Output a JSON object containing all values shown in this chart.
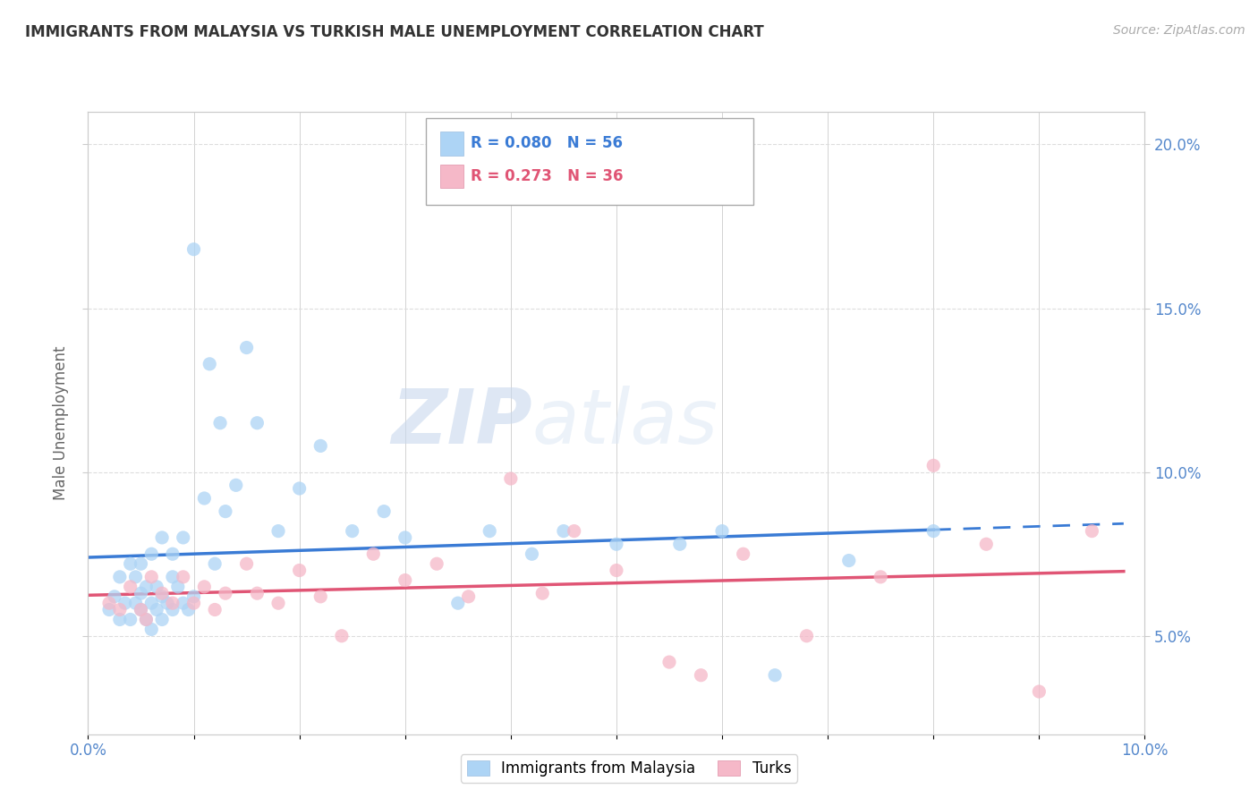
{
  "title": "IMMIGRANTS FROM MALAYSIA VS TURKISH MALE UNEMPLOYMENT CORRELATION CHART",
  "source": "Source: ZipAtlas.com",
  "ylabel": "Male Unemployment",
  "legend_labels": [
    "Immigrants from Malaysia",
    "Turks"
  ],
  "blue_R": "R = 0.080",
  "blue_N": "N = 56",
  "pink_R": "R = 0.273",
  "pink_N": "N = 36",
  "xlim": [
    0.0,
    0.1
  ],
  "ylim": [
    0.02,
    0.21
  ],
  "yticks": [
    0.05,
    0.1,
    0.15,
    0.2
  ],
  "blue_color": "#add4f5",
  "pink_color": "#f5b8c8",
  "blue_line_color": "#3a7bd5",
  "pink_line_color": "#e05575",
  "watermark_zip": "ZIP",
  "watermark_atlas": "atlas",
  "blue_x": [
    0.002,
    0.0025,
    0.003,
    0.003,
    0.0035,
    0.004,
    0.004,
    0.0045,
    0.0045,
    0.005,
    0.005,
    0.005,
    0.0055,
    0.0055,
    0.006,
    0.006,
    0.006,
    0.0065,
    0.0065,
    0.007,
    0.007,
    0.007,
    0.0075,
    0.008,
    0.008,
    0.008,
    0.0085,
    0.009,
    0.009,
    0.0095,
    0.01,
    0.01,
    0.011,
    0.0115,
    0.012,
    0.0125,
    0.013,
    0.014,
    0.015,
    0.016,
    0.018,
    0.02,
    0.022,
    0.025,
    0.028,
    0.03,
    0.035,
    0.038,
    0.042,
    0.045,
    0.05,
    0.056,
    0.06,
    0.065,
    0.072,
    0.08
  ],
  "blue_y": [
    0.058,
    0.062,
    0.055,
    0.068,
    0.06,
    0.055,
    0.072,
    0.06,
    0.068,
    0.058,
    0.063,
    0.072,
    0.055,
    0.065,
    0.052,
    0.06,
    0.075,
    0.058,
    0.065,
    0.055,
    0.062,
    0.08,
    0.06,
    0.058,
    0.068,
    0.075,
    0.065,
    0.06,
    0.08,
    0.058,
    0.062,
    0.168,
    0.092,
    0.133,
    0.072,
    0.115,
    0.088,
    0.096,
    0.138,
    0.115,
    0.082,
    0.095,
    0.108,
    0.082,
    0.088,
    0.08,
    0.06,
    0.082,
    0.075,
    0.082,
    0.078,
    0.078,
    0.082,
    0.038,
    0.073,
    0.082
  ],
  "pink_x": [
    0.002,
    0.003,
    0.004,
    0.005,
    0.0055,
    0.006,
    0.007,
    0.008,
    0.009,
    0.01,
    0.011,
    0.012,
    0.013,
    0.015,
    0.016,
    0.018,
    0.02,
    0.022,
    0.024,
    0.027,
    0.03,
    0.033,
    0.036,
    0.04,
    0.043,
    0.046,
    0.05,
    0.055,
    0.058,
    0.062,
    0.068,
    0.075,
    0.08,
    0.085,
    0.09,
    0.095
  ],
  "pink_y": [
    0.06,
    0.058,
    0.065,
    0.058,
    0.055,
    0.068,
    0.063,
    0.06,
    0.068,
    0.06,
    0.065,
    0.058,
    0.063,
    0.072,
    0.063,
    0.06,
    0.07,
    0.062,
    0.05,
    0.075,
    0.067,
    0.072,
    0.062,
    0.098,
    0.063,
    0.082,
    0.07,
    0.042,
    0.038,
    0.075,
    0.05,
    0.068,
    0.102,
    0.078,
    0.033,
    0.082
  ]
}
